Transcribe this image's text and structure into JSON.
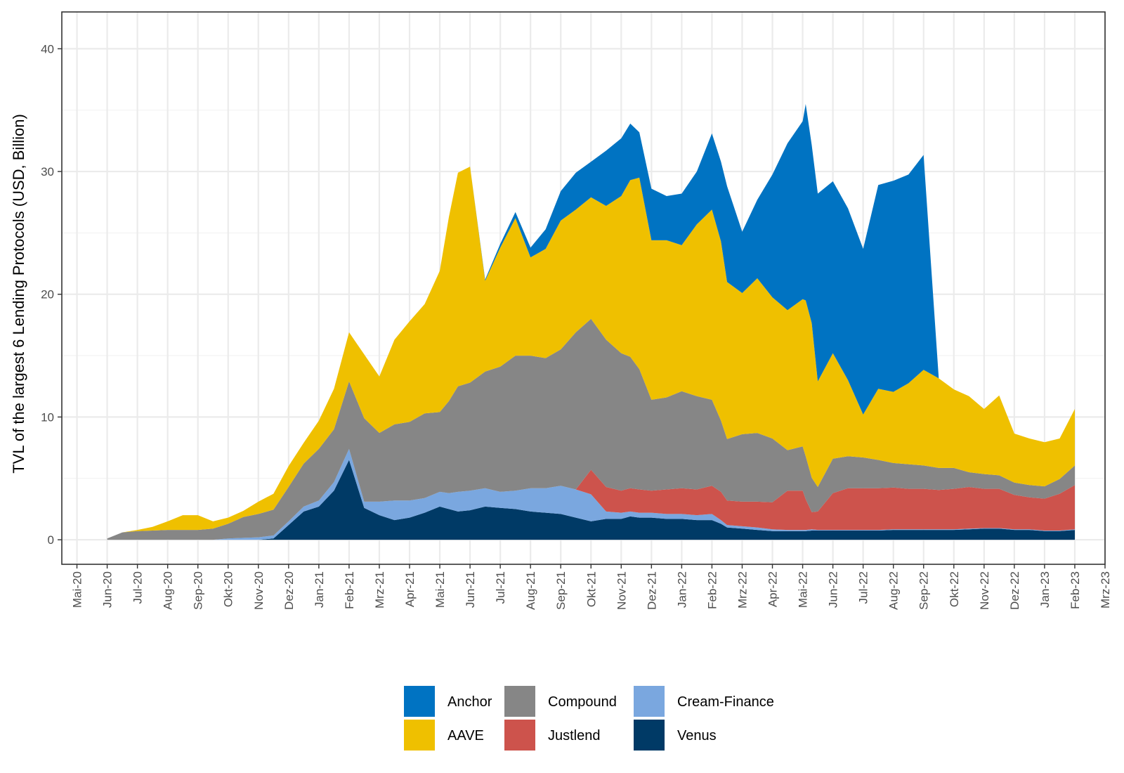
{
  "chart_data": {
    "type": "area",
    "stacked": true,
    "title": "",
    "xlabel": "",
    "ylabel": "TVL of the largest 6 Lending Protocols (USD, Billion)",
    "ylim": [
      -2,
      43
    ],
    "yticks": [
      0,
      10,
      20,
      30,
      40
    ],
    "grid": true,
    "legend_position": "bottom",
    "x_range_months": [
      -0.5,
      34.0
    ],
    "x_tick_labels": [
      "Mai-20",
      "Jun-20",
      "Jul-20",
      "Aug-20",
      "Sep-20",
      "Okt-20",
      "Nov-20",
      "Dez-20",
      "Jan-21",
      "Feb-21",
      "Mrz-21",
      "Apr-21",
      "Mai-21",
      "Jun-21",
      "Jul-21",
      "Aug-21",
      "Sep-21",
      "Okt-21",
      "Nov-21",
      "Dez-21",
      "Jan-22",
      "Feb-22",
      "Mrz-22",
      "Apr-22",
      "Mai-22",
      "Jun-22",
      "Jul-22",
      "Aug-22",
      "Sep-22",
      "Okt-22",
      "Nov-22",
      "Dez-22",
      "Jan-23",
      "Feb-23",
      "Mrz-23"
    ],
    "x": [
      1.0,
      1.5,
      2.0,
      2.5,
      3.0,
      3.5,
      4.0,
      4.5,
      5.0,
      5.5,
      6.0,
      6.5,
      7.0,
      7.5,
      8.0,
      8.5,
      9.0,
      9.5,
      10.0,
      10.5,
      11.0,
      11.5,
      12.0,
      12.3,
      12.6,
      13.0,
      13.5,
      14.0,
      14.5,
      15.0,
      15.5,
      16.0,
      16.5,
      17.0,
      17.5,
      18.0,
      18.3,
      18.6,
      19.0,
      19.5,
      20.0,
      20.5,
      21.0,
      21.3,
      21.5,
      22.0,
      22.5,
      23.0,
      23.5,
      24.0,
      24.1,
      24.3,
      24.5,
      25.0,
      25.5,
      26.0,
      26.5,
      27.0,
      27.5,
      28.0,
      28.5,
      29.0,
      29.5,
      30.0,
      30.5,
      31.0,
      31.5,
      32.0,
      32.5,
      33.0
    ],
    "series": [
      {
        "name": "Venus",
        "color": "#003a66",
        "values": [
          0,
          0,
          0,
          0,
          0,
          0,
          0,
          0,
          0,
          0,
          0,
          0.1,
          1.2,
          2.3,
          2.7,
          4.0,
          6.5,
          2.6,
          2.0,
          1.6,
          1.8,
          2.2,
          2.7,
          2.5,
          2.3,
          2.4,
          2.7,
          2.6,
          2.5,
          2.3,
          2.2,
          2.1,
          1.8,
          1.5,
          1.7,
          1.7,
          1.9,
          1.8,
          1.8,
          1.7,
          1.7,
          1.6,
          1.6,
          1.3,
          1.0,
          0.9,
          0.8,
          0.7,
          0.7,
          0.7,
          0.7,
          0.75,
          0.75,
          0.75,
          0.75,
          0.75,
          0.75,
          0.8,
          0.8,
          0.8,
          0.8,
          0.8,
          0.85,
          0.9,
          0.9,
          0.8,
          0.8,
          0.7,
          0.7,
          0.8
        ]
      },
      {
        "name": "Cream-Finance",
        "color": "#7aa7df",
        "values": [
          0,
          0,
          0,
          0,
          0,
          0,
          0,
          0,
          0.1,
          0.15,
          0.2,
          0.25,
          0.3,
          0.4,
          0.5,
          0.7,
          0.9,
          0.5,
          1.1,
          1.6,
          1.4,
          1.2,
          1.2,
          1.3,
          1.6,
          1.6,
          1.5,
          1.3,
          1.5,
          1.9,
          2.0,
          2.3,
          2.3,
          2.2,
          0.6,
          0.5,
          0.4,
          0.4,
          0.4,
          0.4,
          0.4,
          0.4,
          0.5,
          0.3,
          0.2,
          0.2,
          0.2,
          0.15,
          0.1,
          0.1,
          0.1,
          0.1,
          0.05,
          0.05,
          0.05,
          0.05,
          0.05,
          0.05,
          0.05,
          0.05,
          0.05,
          0.05,
          0.05,
          0.05,
          0.05,
          0.05,
          0.05,
          0.05,
          0.05,
          0.05
        ]
      },
      {
        "name": "Justlend",
        "color": "#cd534c",
        "values": [
          0,
          0,
          0,
          0,
          0,
          0,
          0,
          0,
          0,
          0,
          0,
          0,
          0,
          0,
          0,
          0,
          0,
          0,
          0,
          0,
          0,
          0,
          0,
          0,
          0,
          0,
          0,
          0,
          0,
          0,
          0,
          0,
          0,
          2.0,
          2.0,
          1.8,
          1.9,
          1.9,
          1.8,
          2.0,
          2.1,
          2.1,
          2.3,
          2.3,
          2.0,
          2.0,
          2.1,
          2.2,
          3.2,
          3.2,
          2.5,
          1.4,
          1.5,
          3.0,
          3.4,
          3.4,
          3.4,
          3.4,
          3.3,
          3.3,
          3.2,
          3.3,
          3.4,
          3.2,
          3.2,
          2.8,
          2.6,
          2.6,
          3.0,
          3.6
        ]
      },
      {
        "name": "Compound",
        "color": "#868686",
        "values": [
          0.1,
          0.6,
          0.7,
          0.75,
          0.8,
          0.8,
          0.8,
          0.9,
          1.2,
          1.7,
          1.9,
          2.1,
          2.8,
          3.5,
          4.2,
          4.3,
          5.5,
          6.8,
          5.6,
          6.2,
          6.4,
          6.9,
          6.5,
          7.5,
          8.6,
          8.8,
          9.5,
          10.2,
          11.0,
          10.8,
          10.6,
          11.1,
          12.8,
          12.3,
          12.0,
          11.2,
          10.7,
          9.8,
          7.4,
          7.5,
          7.9,
          7.6,
          7.0,
          5.8,
          5.0,
          5.5,
          5.6,
          5.2,
          3.3,
          3.6,
          3.5,
          2.8,
          2.0,
          2.8,
          2.6,
          2.5,
          2.3,
          2.0,
          2.0,
          1.9,
          1.8,
          1.7,
          1.2,
          1.2,
          1.1,
          1.0,
          1.0,
          1.0,
          1.2,
          1.6
        ]
      },
      {
        "name": "AAVE",
        "color": "#efc000",
        "values": [
          0,
          0,
          0.1,
          0.3,
          0.7,
          1.2,
          1.2,
          0.6,
          0.5,
          0.5,
          1.0,
          1.3,
          1.7,
          1.7,
          2.3,
          3.3,
          4.0,
          5.2,
          4.6,
          6.9,
          8.2,
          8.9,
          11.5,
          15.0,
          17.4,
          17.6,
          7.4,
          9.7,
          11.2,
          8.0,
          8.9,
          10.5,
          10.0,
          9.9,
          10.9,
          12.8,
          14.4,
          15.6,
          13.0,
          12.8,
          11.9,
          14.0,
          15.5,
          14.6,
          12.8,
          11.5,
          12.6,
          11.5,
          11.4,
          12.0,
          12.7,
          12.6,
          8.6,
          8.6,
          6.2,
          3.5,
          5.8,
          5.8,
          6.6,
          7.8,
          7.3,
          6.4,
          6.2,
          5.3,
          6.5,
          4.0,
          3.8,
          3.6,
          3.3,
          4.6
        ]
      },
      {
        "name": "Anchor",
        "color": "#0073c2",
        "values": [
          0,
          0,
          0,
          0,
          0,
          0,
          0,
          0,
          0,
          0,
          0,
          0,
          0,
          0,
          0,
          0,
          0,
          0,
          0,
          0,
          0,
          0,
          0,
          0,
          0,
          0,
          0.1,
          0.3,
          0.5,
          0.8,
          1.6,
          2.4,
          3.0,
          2.9,
          4.5,
          4.7,
          4.6,
          3.7,
          4.2,
          3.6,
          4.2,
          4.3,
          6.2,
          6.5,
          7.8,
          5.0,
          6.4,
          10.0,
          13.6,
          14.5,
          16.0,
          14.5,
          15.3,
          14.0,
          14.0,
          13.5,
          16.6,
          17.2,
          17.0,
          17.5,
          0,
          0,
          0,
          0,
          0,
          0,
          0,
          0,
          0,
          0
        ]
      }
    ],
    "legend": [
      {
        "name": "Anchor",
        "color": "#0073c2"
      },
      {
        "name": "AAVE",
        "color": "#efc000"
      },
      {
        "name": "Compound",
        "color": "#868686"
      },
      {
        "name": "Justlend",
        "color": "#cd534c"
      },
      {
        "name": "Cream-Finance",
        "color": "#7aa7df"
      },
      {
        "name": "Venus",
        "color": "#003a66"
      }
    ]
  }
}
